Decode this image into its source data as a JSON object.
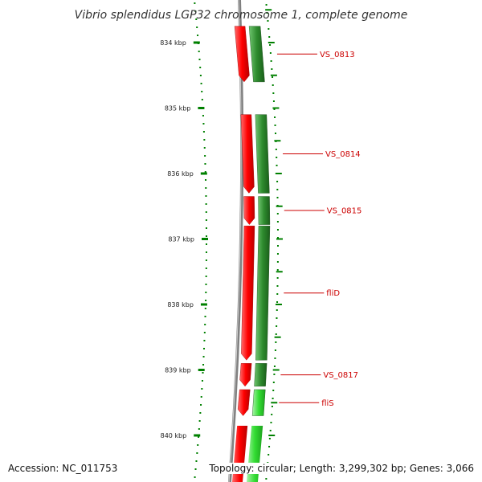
{
  "title": "Vibrio splendidus LGP32 chromosome 1, complete genome",
  "scale_labels": [
    "834 kbp",
    "835 kbp",
    "836 kbp",
    "837 kbp",
    "838 kbp",
    "839 kbp",
    "840 kbp"
  ],
  "genes": [
    {
      "name": "VS_0813",
      "start_kbp": 833.75,
      "end_kbp": 834.6,
      "rna": "red",
      "cds": "dark-green"
    },
    {
      "name": "VS_0814",
      "start_kbp": 835.1,
      "end_kbp": 836.3,
      "rna": "red",
      "cds": "dark-green"
    },
    {
      "name": "VS_0815",
      "start_kbp": 836.35,
      "end_kbp": 836.78,
      "rna": "red",
      "cds": "dark-green"
    },
    {
      "name": "fliD",
      "start_kbp": 836.8,
      "end_kbp": 838.85,
      "rna": "red",
      "cds": "dark-green"
    },
    {
      "name": "VS_0817",
      "start_kbp": 838.9,
      "end_kbp": 839.25,
      "rna": "red",
      "cds": "dark-green"
    },
    {
      "name": "fliS",
      "start_kbp": 839.3,
      "end_kbp": 839.7,
      "rna": "red",
      "cds": "light-green"
    }
  ],
  "colors": {
    "rna": "#ff0000",
    "cds_dark": "#2e8b2e",
    "cds_light": "#33dd33",
    "scale": "#008000",
    "backbone": "#808080",
    "label": "#cc0000"
  },
  "footer": {
    "accession": "Accession: NC_011753",
    "topology": "Topology: circular; Length: 3,299,302 bp; Genes: 3,066"
  }
}
